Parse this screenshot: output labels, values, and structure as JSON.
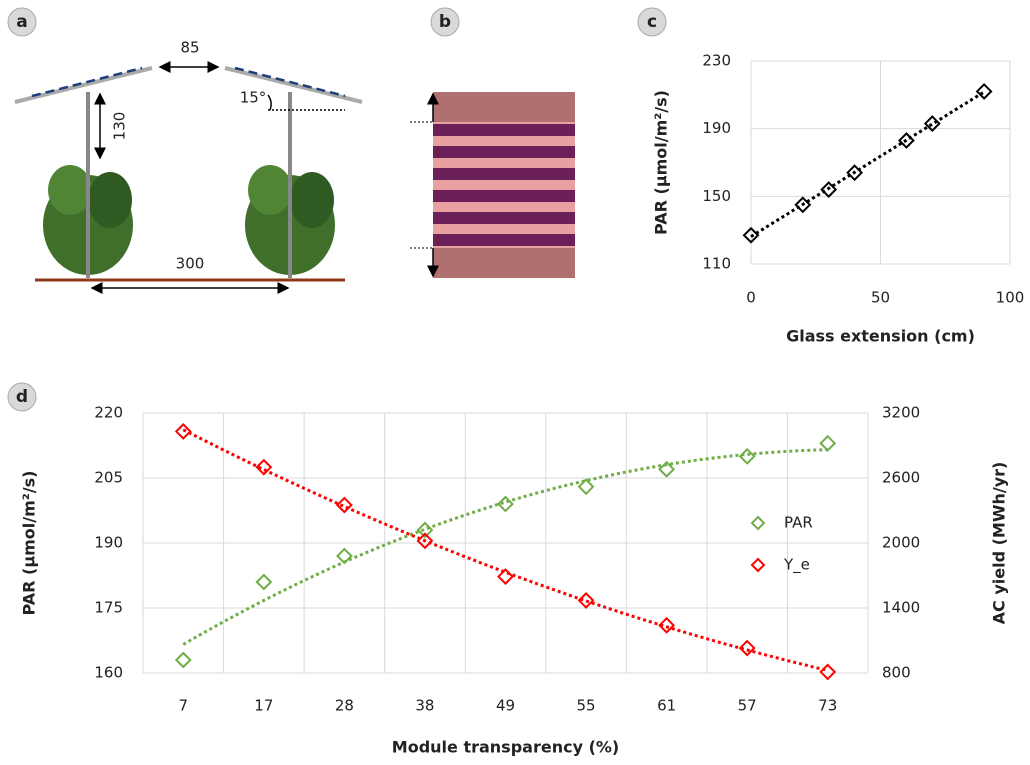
{
  "panel_labels": [
    "a",
    "b",
    "c",
    "d"
  ],
  "diagram_a": {
    "labels": [
      "85",
      "130",
      "15°",
      "300"
    ]
  },
  "chart_data": [
    {
      "type": "scatter",
      "x_label": "Glass extension (cm)",
      "y_label": "PAR (μmol/m²/s)",
      "x": [
        0,
        20,
        30,
        40,
        60,
        70,
        90
      ],
      "values": [
        127,
        145,
        154,
        164,
        183,
        193,
        212
      ],
      "color": "#000000",
      "trendline": "linear",
      "xlim": [
        0,
        100
      ],
      "xticks": [
        0,
        50,
        100
      ],
      "ylim": [
        110,
        230
      ],
      "yticks": [
        110,
        150,
        190,
        230
      ],
      "grid": true
    },
    {
      "type": "scatter",
      "x_label": "Module transparency (%)",
      "y_label": "PAR (μmol/m²/s)",
      "y2_label": "AC yield (MWh/yr)",
      "categories": [
        "7",
        "17",
        "28",
        "38",
        "49",
        "55",
        "61",
        "57",
        "73"
      ],
      "series": [
        {
          "name": "PAR",
          "color": "#70ad47",
          "values": [
            163,
            181,
            187,
            193,
            199,
            203,
            207,
            210,
            213
          ]
        },
        {
          "name": "Y_e",
          "color": "#ff0000",
          "axis": "y2",
          "values": [
            3030,
            2700,
            2350,
            2020,
            1690,
            1470,
            1240,
            1030,
            810
          ]
        }
      ],
      "trendline": "polynomial",
      "legend": "right",
      "ylim": [
        160,
        220
      ],
      "yticks": [
        160,
        175,
        190,
        205,
        220
      ],
      "y2lim": [
        800,
        3200
      ],
      "y2ticks": [
        800,
        1400,
        2000,
        2600,
        3200
      ],
      "grid": true
    }
  ]
}
